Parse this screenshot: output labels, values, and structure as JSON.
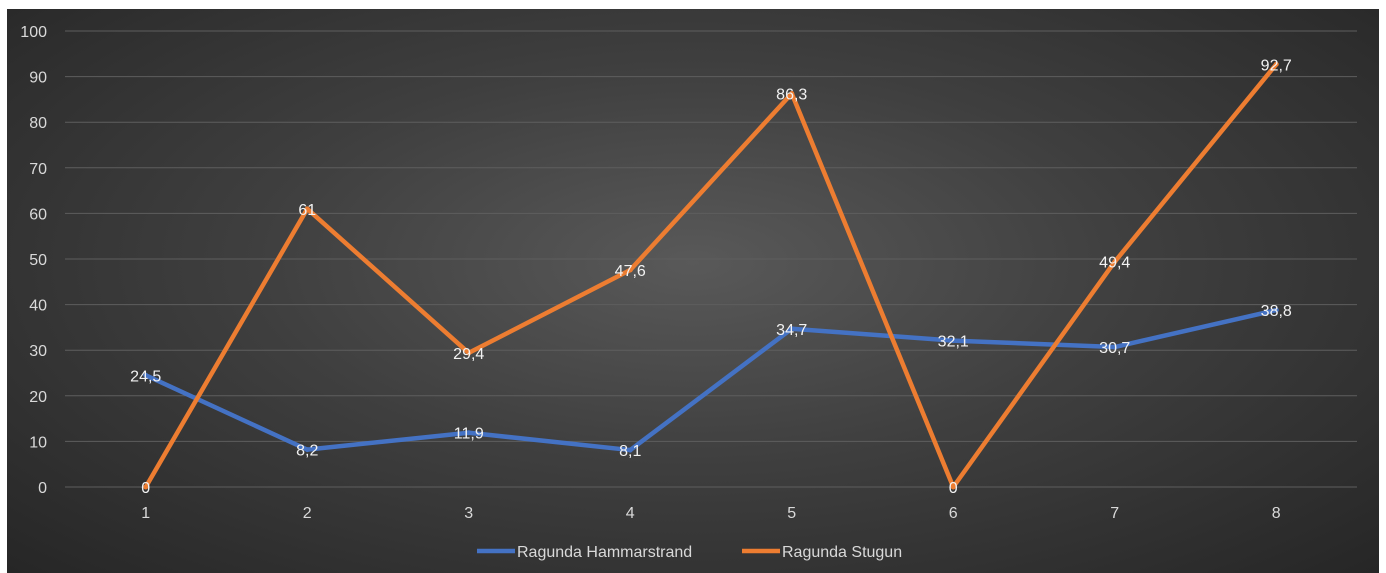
{
  "chart_data": {
    "type": "line",
    "categories": [
      "1",
      "2",
      "3",
      "4",
      "5",
      "6",
      "7",
      "8"
    ],
    "ylim": [
      0,
      100
    ],
    "yticks": [
      "0",
      "10",
      "20",
      "30",
      "40",
      "50",
      "60",
      "70",
      "80",
      "90",
      "100"
    ],
    "grid": true,
    "legend_position": "bottom",
    "series": [
      {
        "name": "Ragunda Hammarstrand",
        "color": "#4472c4",
        "values": [
          24.5,
          8.2,
          11.9,
          8.1,
          34.7,
          32.1,
          30.7,
          38.8
        ],
        "labels": [
          "24,5",
          "8,2",
          "11,9",
          "8,1",
          "34,7",
          "32,1",
          "30,7",
          "38,8"
        ]
      },
      {
        "name": "Ragunda Stugun",
        "color": "#ed7d31",
        "values": [
          0,
          61,
          29.4,
          47.6,
          86.3,
          0,
          49.4,
          92.7
        ],
        "labels": [
          "0",
          "61",
          "29,4",
          "47,6",
          "86,3",
          "0",
          "49,4",
          "92,7"
        ]
      }
    ]
  }
}
